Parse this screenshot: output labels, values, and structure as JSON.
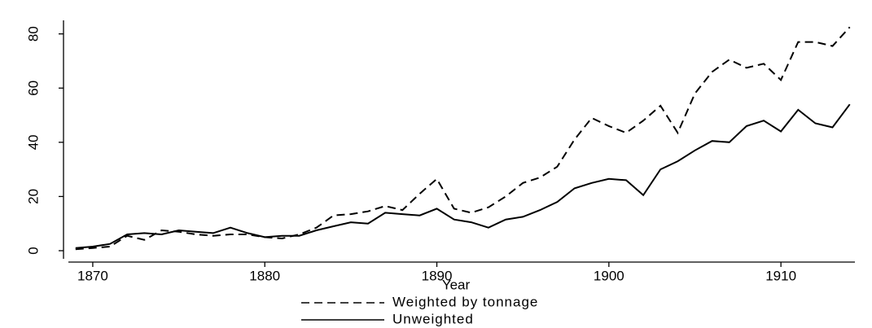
{
  "chart_data": {
    "type": "line",
    "x_label": "Year",
    "x": [
      1869,
      1870,
      1871,
      1872,
      1873,
      1874,
      1875,
      1876,
      1877,
      1878,
      1879,
      1880,
      1881,
      1882,
      1883,
      1884,
      1885,
      1886,
      1887,
      1888,
      1889,
      1890,
      1891,
      1892,
      1893,
      1894,
      1895,
      1896,
      1897,
      1898,
      1899,
      1900,
      1901,
      1902,
      1903,
      1904,
      1905,
      1906,
      1907,
      1908,
      1909,
      1910,
      1911,
      1912,
      1913,
      1914
    ],
    "series": [
      {
        "name": "Weighted by tonnage",
        "color": "#000000",
        "dashed": true,
        "values": [
          0.5,
          1,
          1.5,
          5.5,
          4,
          7.5,
          7,
          6,
          5.5,
          6,
          6,
          5,
          4.5,
          6,
          8.5,
          13,
          13.5,
          14.5,
          16.5,
          15,
          21,
          26.5,
          15.5,
          14,
          16,
          20,
          25,
          27,
          31,
          41,
          49,
          46,
          43.5,
          48,
          53.5,
          43.5,
          58,
          66,
          70.5,
          67.5,
          69,
          63,
          77,
          77,
          75.5,
          82.5
        ]
      },
      {
        "name": "Unweighted",
        "color": "#000000",
        "dashed": false,
        "values": [
          1,
          1.5,
          2.5,
          6,
          6.5,
          6,
          7.5,
          7,
          6.5,
          8.5,
          6.5,
          5,
          5.5,
          5.5,
          7.5,
          9,
          10.5,
          10,
          14,
          13.5,
          13,
          15.5,
          11.5,
          10.5,
          8.5,
          11.5,
          12.5,
          15,
          18,
          23,
          25,
          26.5,
          26,
          20.5,
          30,
          33,
          37,
          40.5,
          40,
          46,
          48,
          44,
          52,
          47,
          45.5,
          54
        ]
      }
    ],
    "xlim": [
      1868.3,
      1914.3
    ],
    "xticks": [
      1870,
      1880,
      1890,
      1900,
      1910
    ],
    "ylim": [
      -3,
      85
    ],
    "yticks": [
      0,
      20,
      40,
      60,
      80
    ]
  }
}
